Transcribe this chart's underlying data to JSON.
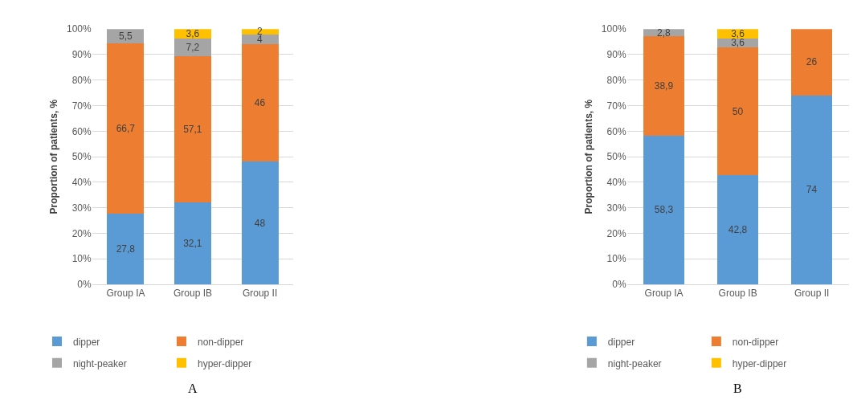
{
  "chart_data": [
    {
      "type": "bar",
      "stacked": true,
      "ylabel": "Proportion of patients, %",
      "categories": [
        "Group IA",
        "Group IB",
        "Group II"
      ],
      "series": [
        {
          "name": "dipper",
          "color": "#5b9bd5",
          "values": [
            27.8,
            32.1,
            48
          ],
          "value_labels": [
            "27,8",
            "32,1",
            "48"
          ]
        },
        {
          "name": "non-dipper",
          "color": "#ed7d31",
          "values": [
            66.7,
            57.1,
            46
          ],
          "value_labels": [
            "66,7",
            "57,1",
            "46"
          ]
        },
        {
          "name": "night-peaker",
          "color": "#a5a5a5",
          "values": [
            5.5,
            7.2,
            4
          ],
          "value_labels": [
            "5,5",
            "7,2",
            "4"
          ]
        },
        {
          "name": "hyper-dipper",
          "color": "#ffc000",
          "values": [
            0,
            3.6,
            2
          ],
          "value_labels": [
            null,
            "3,6",
            "2"
          ]
        }
      ],
      "ylim": [
        0,
        100
      ],
      "yticks": [
        {
          "value": 0,
          "label": "0%"
        },
        {
          "value": 10,
          "label": "10%"
        },
        {
          "value": 20,
          "label": "20%"
        },
        {
          "value": 30,
          "label": "30%"
        },
        {
          "value": 40,
          "label": "40%"
        },
        {
          "value": 50,
          "label": "50%"
        },
        {
          "value": 60,
          "label": "60%"
        },
        {
          "value": 70,
          "label": "70%"
        },
        {
          "value": 80,
          "label": "80%"
        },
        {
          "value": 90,
          "label": "90%"
        },
        {
          "value": 100,
          "label": "100%"
        }
      ],
      "grid": "y",
      "legend": "bottom",
      "annotations": [
        "A"
      ]
    },
    {
      "type": "bar",
      "stacked": true,
      "ylabel": "Proportion of patients, %",
      "categories": [
        "Group IA",
        "Group IB",
        "Group II"
      ],
      "series": [
        {
          "name": "dipper",
          "color": "#5b9bd5",
          "values": [
            58.3,
            42.8,
            74
          ],
          "value_labels": [
            "58,3",
            "42,8",
            "74"
          ]
        },
        {
          "name": "non-dipper",
          "color": "#ed7d31",
          "values": [
            38.9,
            50,
            26
          ],
          "value_labels": [
            "38,9",
            "50",
            "26"
          ]
        },
        {
          "name": "night-peaker",
          "color": "#a5a5a5",
          "values": [
            2.8,
            3.6,
            0
          ],
          "value_labels": [
            "2,8",
            "3,6",
            null
          ]
        },
        {
          "name": "hyper-dipper",
          "color": "#ffc000",
          "values": [
            0,
            3.6,
            0
          ],
          "value_labels": [
            null,
            "3,6",
            null
          ]
        }
      ],
      "ylim": [
        0,
        100
      ],
      "yticks": [
        {
          "value": 0,
          "label": "0%"
        },
        {
          "value": 10,
          "label": "10%"
        },
        {
          "value": 20,
          "label": "20%"
        },
        {
          "value": 30,
          "label": "30%"
        },
        {
          "value": 40,
          "label": "40%"
        },
        {
          "value": 50,
          "label": "50%"
        },
        {
          "value": 60,
          "label": "60%"
        },
        {
          "value": 70,
          "label": "70%"
        },
        {
          "value": 80,
          "label": "80%"
        },
        {
          "value": 90,
          "label": "90%"
        },
        {
          "value": 100,
          "label": "100%"
        }
      ],
      "grid": "y",
      "legend": "bottom",
      "annotations": [
        "B"
      ]
    }
  ]
}
